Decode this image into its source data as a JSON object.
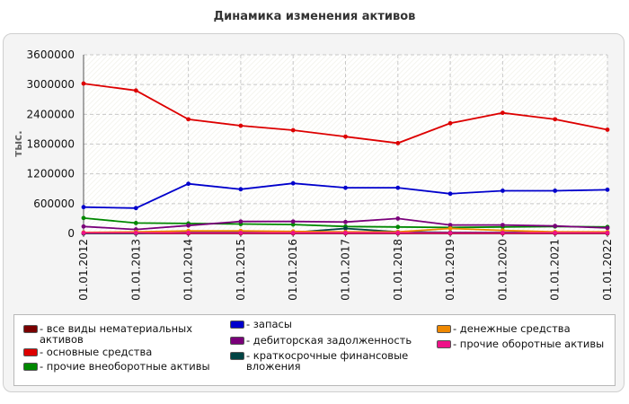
{
  "chart_data": {
    "type": "line",
    "title": "Динамика изменения активов",
    "ylabel": "тыс.",
    "xlabel": "",
    "ylim": [
      0,
      3600000
    ],
    "yticks": [
      "0",
      "600000",
      "1200000",
      "1800000",
      "2400000",
      "3000000",
      "3600000"
    ],
    "grid": true,
    "legend_position": "bottom",
    "x": [
      "01.01.2012",
      "01.01.2013",
      "01.01.2014",
      "01.01.2015",
      "01.01.2016",
      "01.01.2017",
      "01.01.2018",
      "01.01.2019",
      "01.01.2020",
      "01.01.2021",
      "01.01.2022"
    ],
    "series": [
      {
        "name": "- все виды нематериальных активов",
        "color": "#7a0000",
        "values": [
          0,
          0,
          0,
          0,
          0,
          0,
          0,
          0,
          0,
          0,
          0
        ]
      },
      {
        "name": "- основные средства",
        "color": "#dd0000",
        "values": [
          3020000,
          2880000,
          2300000,
          2170000,
          2080000,
          1950000,
          1820000,
          2220000,
          2430000,
          2300000,
          2090000
        ]
      },
      {
        "name": "- прочие внеоборотные активы",
        "color": "#008800",
        "values": [
          310000,
          210000,
          200000,
          190000,
          180000,
          140000,
          130000,
          120000,
          130000,
          140000,
          130000
        ]
      },
      {
        "name": "- запасы",
        "color": "#0000cc",
        "values": [
          530000,
          510000,
          1000000,
          890000,
          1010000,
          920000,
          920000,
          800000,
          860000,
          860000,
          880000
        ]
      },
      {
        "name": "- дебиторская задолженность",
        "color": "#7a007a",
        "values": [
          140000,
          80000,
          160000,
          240000,
          240000,
          230000,
          300000,
          170000,
          170000,
          150000,
          110000
        ]
      },
      {
        "name": "- краткосрочные финансовые вложения",
        "color": "#004444",
        "values": [
          0,
          0,
          30000,
          30000,
          20000,
          100000,
          30000,
          20000,
          20000,
          20000,
          20000
        ]
      },
      {
        "name": "- денежные средства",
        "color": "#ee8800",
        "values": [
          20000,
          30000,
          50000,
          50000,
          40000,
          30000,
          30000,
          100000,
          60000,
          30000,
          30000
        ]
      },
      {
        "name": "- прочие оборотные активы",
        "color": "#ee1188",
        "values": [
          10000,
          10000,
          10000,
          10000,
          10000,
          10000,
          10000,
          10000,
          10000,
          10000,
          10000
        ]
      }
    ]
  }
}
